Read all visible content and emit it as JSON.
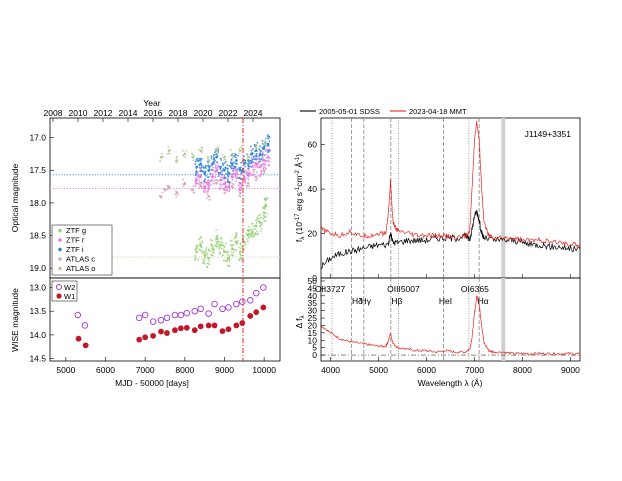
{
  "left_panel": {
    "top_axis_title": "Year",
    "year_ticks": [
      "2008",
      "2010",
      "2012",
      "2014",
      "2016",
      "2018",
      "2020",
      "2022",
      "2024"
    ],
    "top": {
      "ylabel": "Optical magnitude",
      "yticks": [
        "17.0",
        "17.5",
        "18.0",
        "18.5",
        "19.0"
      ],
      "legend": [
        "ZTF g",
        "ZTF r",
        "ZTF i",
        "ATLAS c",
        "ATLAS o"
      ],
      "legend_colors": [
        "#9bd27a",
        "#e37be0",
        "#2f86d8",
        "#d9a8b8",
        "#b7c99a"
      ]
    },
    "bottom": {
      "ylabel": "WISE magnitude",
      "yticks": [
        "13.0",
        "13.5",
        "14.0",
        "14.5"
      ],
      "legend": [
        "W2",
        "W1"
      ],
      "legend_colors": [
        "#a634d6",
        "#c0192a"
      ]
    },
    "xlabel": "MJD - 50000 [days]",
    "xticks": [
      "5000",
      "6000",
      "7000",
      "8000",
      "9000",
      "10000"
    ]
  },
  "right_panel": {
    "legend": [
      "2005-05-01 SDSS",
      "2023-04-18 MMT"
    ],
    "legend_colors": [
      "#000000",
      "#e8261e"
    ],
    "object_label": "J1149+3351",
    "top": {
      "ylabel": "f",
      "ylabel_sub": "λ",
      "ylabel_units": "(10",
      "ylabel_exp": "-17",
      "ylabel_units2": " erg s",
      "ylabel_exp2": "-1",
      "ylabel_units3": "cm",
      "ylabel_exp3": "-2",
      "ylabel_units4": " Å",
      "ylabel_exp4": "-1",
      "ylabel_close": ")",
      "yticks": [
        "0",
        "20",
        "40",
        "60"
      ]
    },
    "bottom": {
      "ylabel": "Δ f",
      "ylabel_sub": "λ",
      "yticks": [
        "0",
        "5",
        "10",
        "15",
        "20",
        "25",
        "30",
        "35",
        "40",
        "45",
        "50"
      ],
      "line_labels": [
        "OII3727",
        "Hδ",
        "Hγ",
        "Hβ",
        "OIII5007",
        "HeI",
        "OI6365",
        "Hα"
      ]
    },
    "xlabel": "Wavelength λ (Å)",
    "xticks": [
      "4000",
      "5000",
      "6000",
      "7000",
      "8000",
      "9000"
    ]
  },
  "chart_data": [
    {
      "type": "scatter",
      "panel": "optical-light-curve",
      "x_axis": "MJD - 50000 [days]",
      "ylabel": "Optical magnitude",
      "ylim": [
        19.15,
        16.7
      ],
      "xlim": [
        4600,
        10400
      ],
      "series": [
        {
          "name": "ZTF g",
          "color": "#9bd27a",
          "x": [
            8300,
            8400,
            8500,
            8600,
            8700,
            8800,
            8900,
            9000,
            9100,
            9200,
            9300,
            9400,
            9500,
            9600,
            9700,
            9800,
            9900,
            10000,
            10050
          ],
          "y": [
            18.75,
            18.65,
            18.8,
            18.85,
            18.7,
            18.55,
            18.65,
            18.75,
            18.85,
            18.7,
            18.6,
            18.75,
            18.6,
            18.5,
            18.45,
            18.35,
            18.3,
            18.15,
            18.05
          ]
        },
        {
          "name": "ZTF r",
          "color": "#e37be0",
          "x": [
            8300,
            8400,
            8500,
            8600,
            8700,
            8800,
            8900,
            9000,
            9100,
            9200,
            9300,
            9400,
            9500,
            9600,
            9700,
            9800,
            9900,
            10000,
            10100
          ],
          "y": [
            17.65,
            17.6,
            17.75,
            17.7,
            17.6,
            17.5,
            17.65,
            17.7,
            17.75,
            17.6,
            17.55,
            17.7,
            17.6,
            17.55,
            17.45,
            17.4,
            17.45,
            17.35,
            17.3
          ]
        },
        {
          "name": "ZTF i",
          "color": "#2f86d8",
          "x": [
            8300,
            8400,
            8500,
            8600,
            8700,
            8800,
            8900,
            9000,
            9100,
            9200,
            9300,
            9400,
            9500,
            9600,
            9700,
            9800,
            9900,
            10000,
            10100
          ],
          "y": [
            17.45,
            17.4,
            17.55,
            17.5,
            17.4,
            17.3,
            17.45,
            17.5,
            17.55,
            17.4,
            17.35,
            17.5,
            17.4,
            17.35,
            17.25,
            17.2,
            17.25,
            17.15,
            17.1
          ]
        },
        {
          "name": "ATLAS c",
          "color": "#d9a8b8",
          "x": [
            7400,
            7500,
            7600,
            7800,
            8000,
            8200,
            8400,
            8600,
            8800,
            9000,
            9200,
            9400,
            9600,
            9800,
            10000
          ],
          "y": [
            17.9,
            17.8,
            17.75,
            17.85,
            17.7,
            17.8,
            17.75,
            17.9,
            17.7,
            17.8,
            17.75,
            17.85,
            17.7,
            17.6,
            17.5
          ]
        },
        {
          "name": "ATLAS o",
          "color": "#b7c99a",
          "x": [
            7400,
            7600,
            7800,
            8000,
            8200,
            8400,
            8600,
            8800,
            9000,
            9200,
            9400,
            9600,
            9800,
            10000
          ],
          "y": [
            17.3,
            17.2,
            17.35,
            17.25,
            17.3,
            17.2,
            17.35,
            17.2,
            17.3,
            17.25,
            17.2,
            17.3,
            17.15,
            17.1
          ]
        }
      ],
      "reference_lines": [
        17.57,
        17.78,
        18.83
      ]
    },
    {
      "type": "scatter",
      "panel": "wise-light-curve",
      "x_axis": "MJD - 50000 [days]",
      "ylabel": "WISE magnitude",
      "ylim": [
        14.55,
        12.8
      ],
      "xlim": [
        4600,
        10400
      ],
      "series": [
        {
          "name": "W2",
          "color": "#a634d6",
          "x": [
            5300,
            5480,
            6850,
            7000,
            7200,
            7400,
            7550,
            7750,
            7900,
            8050,
            8250,
            8400,
            8600,
            8750,
            8950,
            9100,
            9300,
            9450,
            9650,
            9800,
            9980
          ],
          "y": [
            13.58,
            13.8,
            13.64,
            13.58,
            13.72,
            13.69,
            13.64,
            13.58,
            13.58,
            13.54,
            13.5,
            13.45,
            13.55,
            13.35,
            13.45,
            13.42,
            13.35,
            13.3,
            13.27,
            13.12,
            13.0
          ]
        },
        {
          "name": "W1",
          "color": "#c0192a",
          "x": [
            5320,
            5500,
            6850,
            7000,
            7200,
            7400,
            7550,
            7750,
            7900,
            8050,
            8250,
            8400,
            8600,
            8750,
            8950,
            9100,
            9300,
            9450,
            9650,
            9800,
            9980
          ],
          "y": [
            14.08,
            14.22,
            14.1,
            14.05,
            14.02,
            13.93,
            13.96,
            13.9,
            13.86,
            13.85,
            13.9,
            13.82,
            13.8,
            13.8,
            13.92,
            13.88,
            13.8,
            13.75,
            13.6,
            13.52,
            13.42
          ]
        }
      ]
    },
    {
      "type": "line",
      "panel": "spectra",
      "xlabel": "Wavelength λ (Å)",
      "xlim": [
        3800,
        9200
      ],
      "ylim": [
        0,
        72
      ],
      "series": [
        {
          "name": "2005-05-01 SDSS",
          "color": "#000000",
          "x": [
            3800,
            4000,
            4200,
            4400,
            4600,
            4800,
            5000,
            5200,
            5250,
            5300,
            5400,
            5600,
            5800,
            6000,
            6200,
            6400,
            6600,
            6800,
            6900,
            6950,
            7000,
            7050,
            7100,
            7150,
            7200,
            7400,
            7600,
            7800,
            8000,
            8200,
            8400,
            8600,
            8800,
            9000,
            9200
          ],
          "y": [
            5,
            9,
            11,
            12,
            13,
            14,
            15,
            15,
            20,
            16,
            16,
            17,
            17,
            17,
            18,
            18,
            18,
            19,
            17,
            22,
            28,
            30,
            26,
            20,
            18,
            17,
            17,
            17,
            16,
            15,
            15,
            14,
            14,
            13,
            13
          ]
        },
        {
          "name": "2023-04-18 MMT",
          "color": "#e8261e",
          "x": [
            3800,
            4000,
            4200,
            4400,
            4600,
            4800,
            5000,
            5150,
            5200,
            5250,
            5300,
            5400,
            5600,
            5800,
            6000,
            6200,
            6400,
            6600,
            6800,
            6900,
            6950,
            7000,
            7050,
            7100,
            7150,
            7200,
            7300,
            7400,
            7600,
            7800,
            8000,
            8200,
            8400,
            8600,
            8800,
            9000,
            9200
          ],
          "y": [
            22,
            20,
            19,
            21,
            19,
            19,
            20,
            20,
            28,
            44,
            25,
            21,
            20,
            19,
            19,
            19,
            19,
            18,
            19,
            21,
            40,
            62,
            70,
            62,
            40,
            25,
            19,
            18,
            18,
            18,
            17,
            17,
            17,
            16,
            16,
            15,
            15
          ]
        }
      ]
    },
    {
      "type": "line",
      "panel": "difference-spectrum",
      "xlabel": "Wavelength λ (Å)",
      "ylabel": "Δ f λ",
      "xlim": [
        3800,
        9200
      ],
      "ylim": [
        -4,
        52
      ],
      "series": [
        {
          "name": "MMT - SDSS",
          "color": "#e8261e",
          "x": [
            3800,
            4000,
            4200,
            4400,
            4600,
            4800,
            5000,
            5150,
            5200,
            5250,
            5300,
            5400,
            5600,
            5800,
            6000,
            6200,
            6400,
            6600,
            6800,
            6900,
            6950,
            7000,
            7050,
            7100,
            7150,
            7200,
            7300,
            7400,
            7600,
            7800,
            8000,
            8200,
            8400,
            8600,
            8800,
            9000,
            9200
          ],
          "y": [
            20,
            15,
            11,
            9,
            8,
            7,
            6,
            6,
            9,
            15,
            8,
            5,
            4,
            3,
            3,
            2,
            3,
            2,
            2,
            4,
            12,
            28,
            40,
            34,
            20,
            8,
            3,
            2,
            2,
            1,
            1,
            1,
            1,
            1,
            1,
            1,
            1
          ]
        }
      ]
    }
  ]
}
